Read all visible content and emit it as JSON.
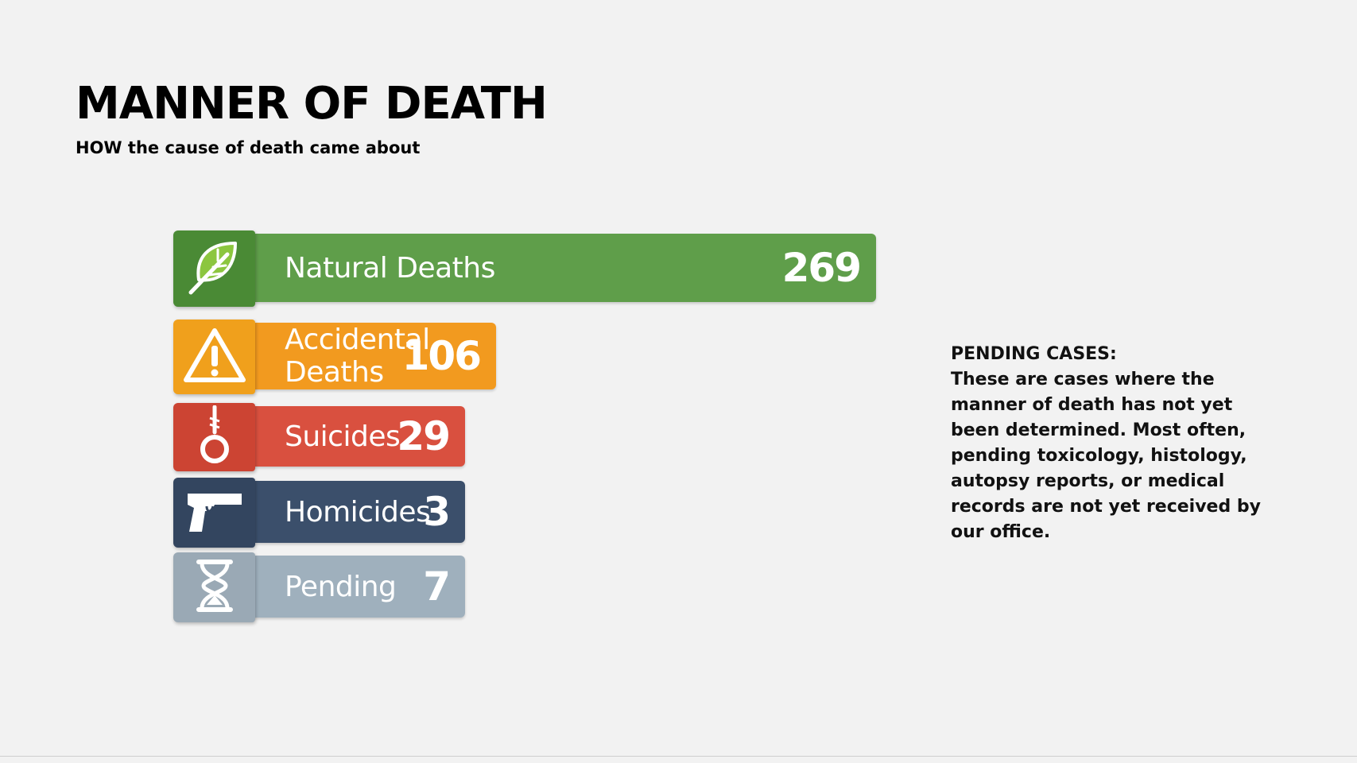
{
  "header": {
    "title": "MANNER OF DEATH",
    "subtitle": "HOW the cause of death came about"
  },
  "chart_data": {
    "type": "bar",
    "orientation": "horizontal",
    "categories": [
      "Natural Deaths",
      "Accidental Deaths",
      "Suicides",
      "Homicides",
      "Pending"
    ],
    "values": [
      269,
      106,
      29,
      3,
      7
    ],
    "value_labels": [
      "269",
      "106",
      "29",
      "3",
      "7"
    ],
    "colors": [
      "#5f9e4a",
      "#f29a1f",
      "#d9503f",
      "#3b4f6b",
      "#9fb0bd"
    ],
    "icon_colors": [
      "#4a8a35",
      "#f0a01c",
      "#cc4433",
      "#33455f",
      "#9aa9b5"
    ],
    "icons": [
      "leaf-icon",
      "warning-icon",
      "noose-icon",
      "gun-icon",
      "hourglass-icon"
    ],
    "title": "",
    "xlabel": "",
    "ylabel": ""
  },
  "note": {
    "title": "PENDING CASES:",
    "body": "These are cases where the manner of death has not yet been determined. Most often, pending toxicology, histology, autopsy reports, or medical records are not yet received by our office."
  }
}
